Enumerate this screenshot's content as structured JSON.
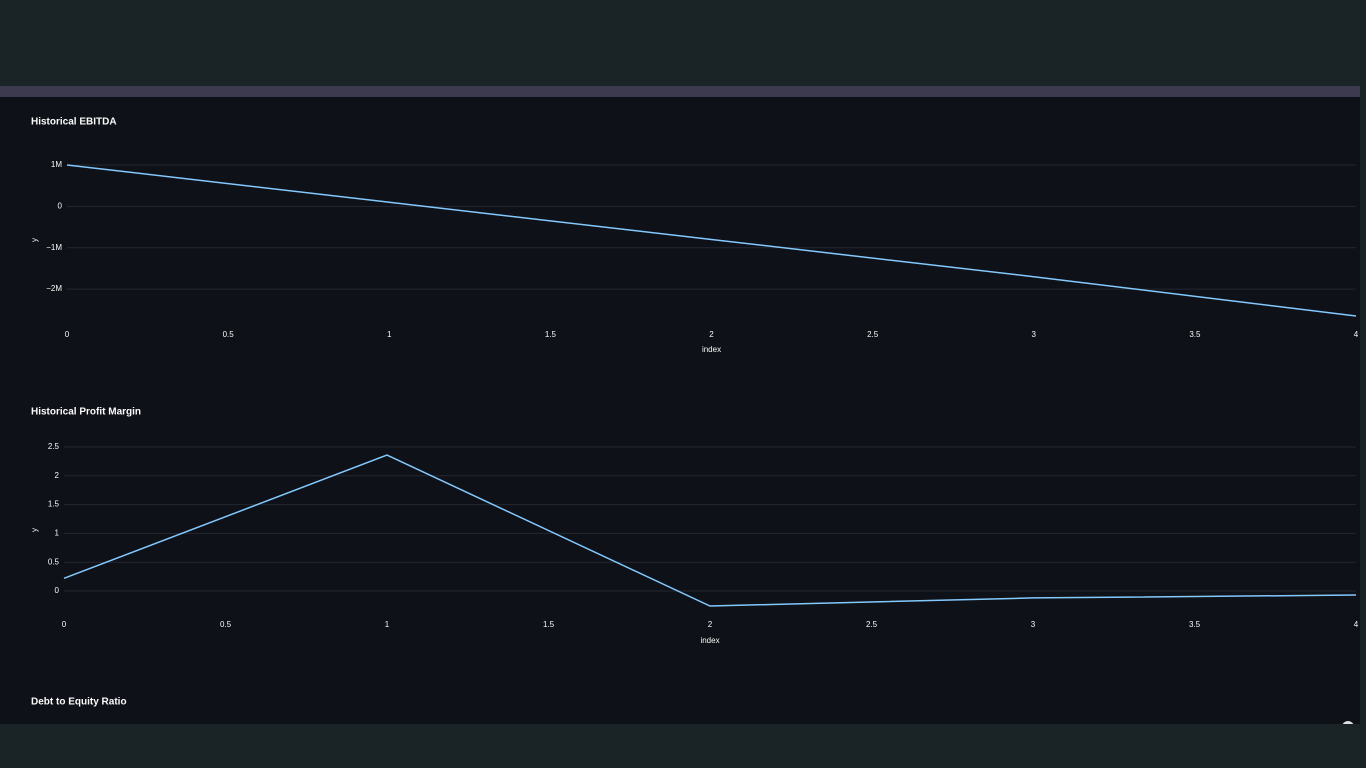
{
  "chart_data": [
    {
      "type": "line",
      "title": "Historical EBITDA",
      "x_label": "index",
      "y_label": "y",
      "x": [
        0,
        1,
        2,
        3,
        4
      ],
      "series": [
        {
          "name": "y",
          "color": "#83c9ff",
          "values": [
            1000000,
            100000,
            -800000,
            -1700000,
            -2650000
          ]
        }
      ],
      "xlim": [
        0,
        4
      ],
      "xticks": [
        0,
        0.5,
        1,
        1.5,
        2,
        2.5,
        3,
        3.5,
        4
      ],
      "ylim": [
        -2650000,
        1000000
      ],
      "yticks": [
        {
          "value": 1000000,
          "label": "1M"
        },
        0,
        {
          "value": -1000000,
          "label": "−1M"
        },
        {
          "value": -2000000,
          "label": "−2M"
        }
      ],
      "grid": true
    },
    {
      "type": "line",
      "title": "Historical Profit Margin",
      "x_label": "index",
      "y_label": "y",
      "x": [
        0,
        1,
        2,
        3,
        4
      ],
      "series": [
        {
          "name": "y",
          "color": "#83c9ff",
          "values": [
            0.22,
            2.36,
            -0.26,
            -0.12,
            -0.07
          ]
        }
      ],
      "xlim": [
        0,
        4
      ],
      "xticks": [
        0,
        0.5,
        1,
        1.5,
        2,
        2.5,
        3,
        3.5,
        4
      ],
      "ylim": [
        -0.26,
        2.5
      ],
      "yticks": [
        0,
        0.5,
        1,
        1.5,
        2,
        2.5
      ],
      "grid": true
    }
  ],
  "sections": [
    {
      "title": "Debt to Equity Ratio"
    }
  ]
}
